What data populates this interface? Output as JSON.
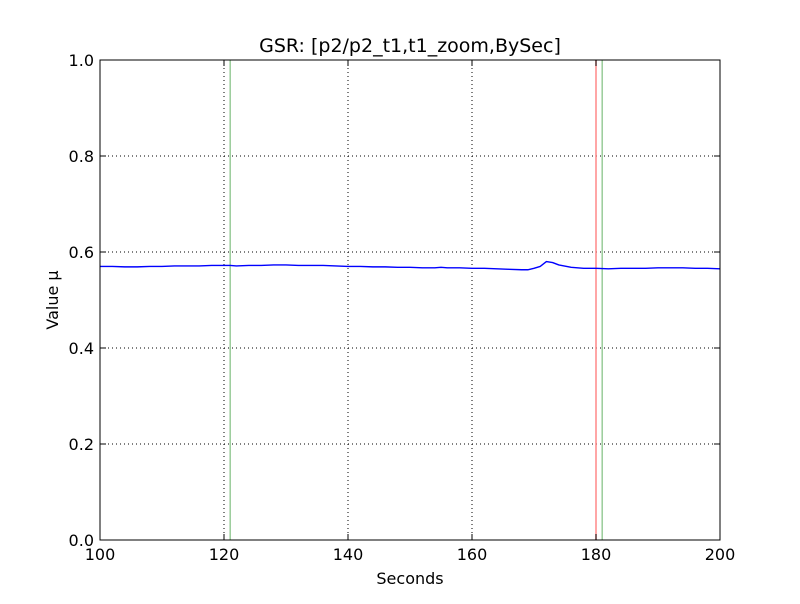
{
  "chart_data": {
    "type": "line",
    "title": "GSR: [p2/p2_t1,t1_zoom,BySec]",
    "xlabel": "Seconds",
    "ylabel": "Value µ",
    "xlim": [
      100,
      200
    ],
    "ylim": [
      0.0,
      1.0
    ],
    "x_ticks": [
      100,
      120,
      140,
      160,
      180,
      200
    ],
    "x_tick_labels": [
      "100",
      "120",
      "140",
      "160",
      "180",
      "200"
    ],
    "y_ticks": [
      0.0,
      0.2,
      0.4,
      0.6,
      0.8,
      1.0
    ],
    "y_tick_labels": [
      "0.0",
      "0.2",
      "0.4",
      "0.6",
      "0.8",
      "1.0"
    ],
    "grid": true,
    "legend": "none",
    "series": [
      {
        "color": "#0000ff",
        "x": [
          100,
          102,
          104,
          106,
          108,
          110,
          112,
          114,
          116,
          118,
          120,
          121,
          122,
          124,
          126,
          128,
          130,
          132,
          134,
          136,
          138,
          140,
          142,
          144,
          146,
          148,
          150,
          152,
          154,
          155,
          156,
          158,
          160,
          162,
          164,
          166,
          168,
          169,
          170,
          171,
          172,
          173,
          174,
          176,
          178,
          180,
          182,
          184,
          186,
          188,
          190,
          192,
          194,
          196,
          198,
          200
        ],
        "values": [
          0.57,
          0.57,
          0.569,
          0.569,
          0.57,
          0.57,
          0.571,
          0.571,
          0.571,
          0.572,
          0.572,
          0.572,
          0.571,
          0.572,
          0.572,
          0.573,
          0.573,
          0.572,
          0.572,
          0.572,
          0.571,
          0.57,
          0.57,
          0.569,
          0.569,
          0.568,
          0.568,
          0.567,
          0.567,
          0.568,
          0.567,
          0.567,
          0.566,
          0.566,
          0.565,
          0.564,
          0.563,
          0.563,
          0.566,
          0.57,
          0.58,
          0.578,
          0.573,
          0.568,
          0.566,
          0.566,
          0.565,
          0.566,
          0.566,
          0.566,
          0.567,
          0.567,
          0.567,
          0.566,
          0.566,
          0.565
        ]
      }
    ],
    "vertical_markers": [
      {
        "x": 121,
        "color": "#99cc99"
      },
      {
        "x": 181,
        "color": "#99cc99"
      },
      {
        "x": 180,
        "color": "#ff8888"
      }
    ]
  }
}
